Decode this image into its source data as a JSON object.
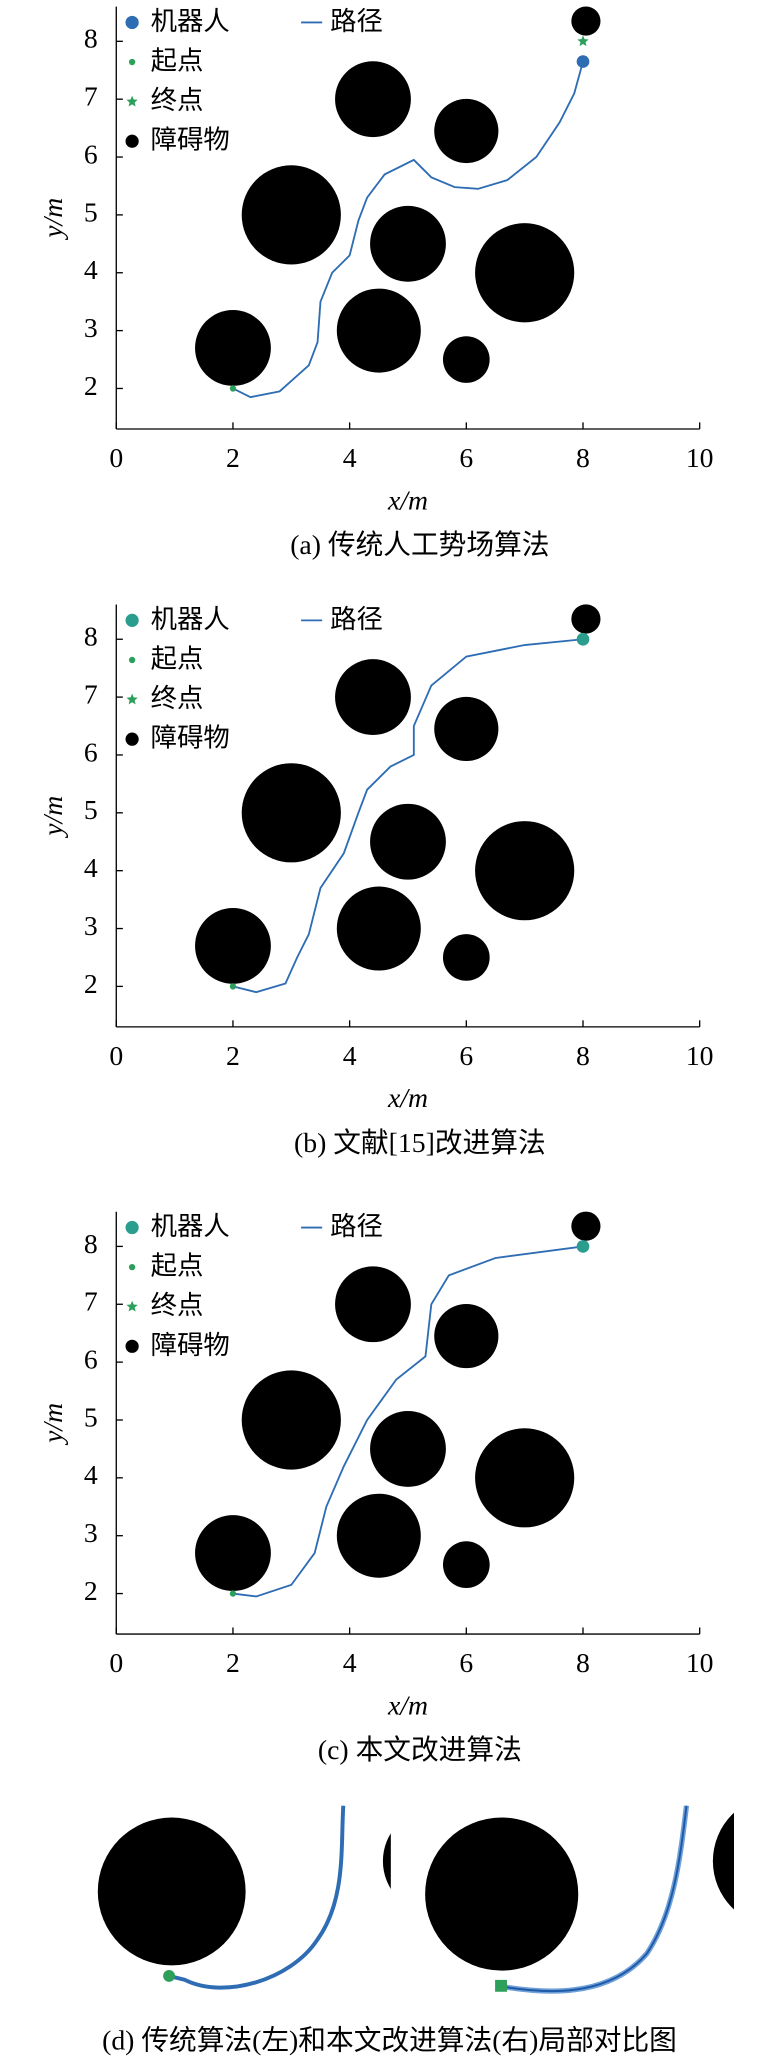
{
  "chart_data": [
    {
      "type": "path_plot",
      "caption": "(a) 传统人工势场算法",
      "xlabel": "x/m",
      "ylabel": "y/m",
      "xlim": [
        0,
        10
      ],
      "ylim": [
        1.3,
        8.6
      ],
      "xticks": [
        0,
        2,
        4,
        6,
        8,
        10
      ],
      "yticks": [
        2,
        3,
        4,
        5,
        6,
        7,
        8
      ],
      "legend": "upper left",
      "series": [
        {
          "name": "机器人",
          "marker": "circle",
          "color": "#2e6db4",
          "x": [
            8
          ],
          "values": [
            7.65
          ]
        },
        {
          "name": "路径",
          "marker": "line",
          "color": "#2e6db4",
          "x": [
            2,
            2.3,
            2.8,
            3.3,
            3.45,
            3.5,
            3.7,
            4.0,
            4.15,
            4.3,
            4.6,
            5.1,
            5.4,
            5.8,
            6.2,
            6.7,
            7.2,
            7.6,
            7.85,
            8
          ],
          "values": [
            2,
            1.85,
            1.95,
            2.4,
            2.8,
            3.5,
            4.0,
            4.3,
            4.9,
            5.3,
            5.7,
            5.95,
            5.65,
            5.48,
            5.45,
            5.6,
            6.0,
            6.6,
            7.1,
            7.65
          ]
        },
        {
          "name": "起点",
          "marker": "point",
          "color": "#2ca05a",
          "x": [
            2
          ],
          "values": [
            2
          ]
        },
        {
          "name": "终点",
          "marker": "star",
          "color": "#2ca05a",
          "x": [
            8
          ],
          "values": [
            8
          ]
        },
        {
          "name": "障碍物",
          "marker": "disk",
          "color": "#000000",
          "x": [
            3,
            4.4,
            6,
            5,
            7,
            4.5,
            2,
            6,
            8.05
          ],
          "values": [
            5,
            7,
            6.45,
            4.5,
            4,
            3,
            2.7,
            2.5,
            8.35
          ],
          "sizes": [
            0.85,
            0.65,
            0.55,
            0.65,
            0.85,
            0.72,
            0.65,
            0.4,
            0.25
          ]
        }
      ]
    },
    {
      "type": "path_plot",
      "caption": "(b) 文献[15]改进算法",
      "xlabel": "x/m",
      "ylabel": "y/m",
      "xlim": [
        0,
        10
      ],
      "ylim": [
        1.3,
        8.6
      ],
      "xticks": [
        0,
        2,
        4,
        6,
        8,
        10
      ],
      "yticks": [
        2,
        3,
        4,
        5,
        6,
        7,
        8
      ],
      "legend": "upper left",
      "series": [
        {
          "name": "机器人",
          "marker": "circle",
          "color": "#2a9d8f",
          "x": [
            8
          ],
          "values": [
            8
          ]
        },
        {
          "name": "路径",
          "marker": "line",
          "color": "#2e6db4",
          "x": [
            2,
            2.4,
            2.9,
            3.1,
            3.3,
            3.5,
            3.9,
            4.15,
            4.3,
            4.7,
            5.1,
            5.1,
            5.4,
            6.0,
            7.0,
            8
          ],
          "values": [
            2,
            1.9,
            2.05,
            2.5,
            2.9,
            3.7,
            4.3,
            5.0,
            5.4,
            5.8,
            6.0,
            6.5,
            7.2,
            7.7,
            7.9,
            8
          ]
        },
        {
          "name": "起点",
          "marker": "point",
          "color": "#2ca05a",
          "x": [
            2
          ],
          "values": [
            2
          ]
        },
        {
          "name": "终点",
          "marker": "star",
          "color": "#2ca05a",
          "x": [
            8
          ],
          "values": [
            8
          ]
        },
        {
          "name": "障碍物",
          "marker": "disk",
          "color": "#000000",
          "x": [
            3,
            4.4,
            6,
            5,
            7,
            4.5,
            2,
            6,
            8.05
          ],
          "values": [
            5,
            7,
            6.45,
            4.5,
            4,
            3,
            2.7,
            2.5,
            8.35
          ],
          "sizes": [
            0.85,
            0.65,
            0.55,
            0.65,
            0.85,
            0.72,
            0.65,
            0.4,
            0.25
          ]
        }
      ]
    },
    {
      "type": "path_plot",
      "caption": "(c) 本文改进算法",
      "xlabel": "x/m",
      "ylabel": "y/m",
      "xlim": [
        0,
        10
      ],
      "ylim": [
        1.3,
        8.6
      ],
      "xticks": [
        0,
        2,
        4,
        6,
        8,
        10
      ],
      "yticks": [
        2,
        3,
        4,
        5,
        6,
        7,
        8
      ],
      "legend": "upper left",
      "series": [
        {
          "name": "机器人",
          "marker": "circle",
          "color": "#2a9d8f",
          "x": [
            8
          ],
          "values": [
            8
          ]
        },
        {
          "name": "路径",
          "marker": "line",
          "color": "#2e6db4",
          "x": [
            2,
            2.4,
            3.0,
            3.4,
            3.6,
            3.9,
            4.3,
            4.8,
            5.3,
            5.4,
            5.7,
            6.5,
            8
          ],
          "values": [
            2,
            1.95,
            2.15,
            2.7,
            3.5,
            4.2,
            5.0,
            5.7,
            6.1,
            7.0,
            7.5,
            7.8,
            8
          ]
        },
        {
          "name": "起点",
          "marker": "point",
          "color": "#2ca05a",
          "x": [
            2
          ],
          "values": [
            2
          ]
        },
        {
          "name": "终点",
          "marker": "star",
          "color": "#2ca05a",
          "x": [
            8
          ],
          "values": [
            8
          ]
        },
        {
          "name": "障碍物",
          "marker": "disk",
          "color": "#000000",
          "x": [
            3,
            4.4,
            6,
            5,
            7,
            4.5,
            2,
            6,
            8.05
          ],
          "values": [
            5,
            7,
            6.45,
            4.5,
            4,
            3,
            2.7,
            2.5,
            8.35
          ],
          "sizes": [
            0.85,
            0.65,
            0.55,
            0.65,
            0.85,
            0.72,
            0.65,
            0.4,
            0.25
          ]
        }
      ]
    }
  ],
  "figure_d": {
    "caption": "(d) 传统算法(左)和本文改进算法(右)局部对比图"
  }
}
